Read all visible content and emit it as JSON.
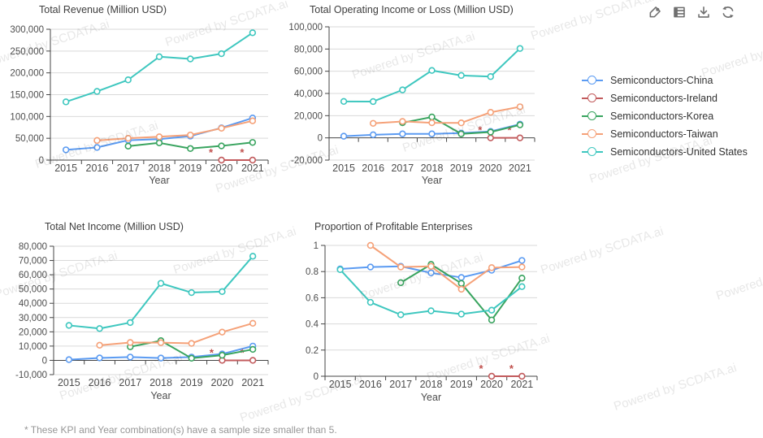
{
  "watermark": "Powered by SCDATA.ai",
  "footnote": "* These KPI and Year combination(s) have a sample size smaller than 5.",
  "toolbar": {
    "icons": [
      "tag",
      "data-view",
      "download",
      "refresh"
    ]
  },
  "legend": [
    {
      "label": "Semiconductors-China",
      "color": "#5B9BF2"
    },
    {
      "label": "Semiconductors-Ireland",
      "color": "#C25B5D"
    },
    {
      "label": "Semiconductors-Korea",
      "color": "#39A45F"
    },
    {
      "label": "Semiconductors-Taiwan",
      "color": "#F5A178"
    },
    {
      "label": "Semiconductors-United States",
      "color": "#3EC7BF"
    }
  ],
  "flag_color": "#C0504D",
  "axis_color": "#444444",
  "grid_color": "#D9D9D9",
  "chart_data": [
    {
      "type": "line",
      "title": "Total Revenue (Million USD)",
      "xlabel": "Year",
      "categories": [
        "2015",
        "2016",
        "2017",
        "2018",
        "2019",
        "2020",
        "2021"
      ],
      "ylim": [
        0,
        300000
      ],
      "ytick_step": 50000,
      "grid": true,
      "series": [
        {
          "name": "Semiconductors-China",
          "color": "#5B9BF2",
          "values": [
            23500,
            29000,
            45500,
            48000,
            55000,
            74000,
            96500
          ]
        },
        {
          "name": "Semiconductors-Ireland",
          "color": "#C25B5D",
          "values": [
            null,
            null,
            null,
            null,
            null,
            0,
            0
          ],
          "flagged_indices": [
            5,
            6
          ]
        },
        {
          "name": "Semiconductors-Korea",
          "color": "#39A45F",
          "values": [
            null,
            null,
            32000,
            39500,
            26500,
            32500,
            40500
          ]
        },
        {
          "name": "Semiconductors-Taiwan",
          "color": "#F5A178",
          "values": [
            null,
            45000,
            50000,
            53500,
            57500,
            73000,
            90000
          ]
        },
        {
          "name": "Semiconductors-United States",
          "color": "#3EC7BF",
          "values": [
            133500,
            157500,
            184000,
            237000,
            232000,
            244000,
            292000
          ]
        }
      ]
    },
    {
      "type": "line",
      "title": "Total Operating Income or Loss (Million USD)",
      "xlabel": "Year",
      "categories": [
        "2015",
        "2016",
        "2017",
        "2018",
        "2019",
        "2020",
        "2021"
      ],
      "ylim": [
        -20000,
        100000
      ],
      "ytick_step": 20000,
      "grid": true,
      "series": [
        {
          "name": "Semiconductors-China",
          "color": "#5B9BF2",
          "values": [
            1500,
            2800,
            3600,
            3600,
            4300,
            5800,
            12300
          ]
        },
        {
          "name": "Semiconductors-Ireland",
          "color": "#C25B5D",
          "values": [
            null,
            null,
            null,
            null,
            null,
            0,
            0
          ],
          "flagged_indices": [
            5,
            6
          ]
        },
        {
          "name": "Semiconductors-Korea",
          "color": "#39A45F",
          "values": [
            null,
            null,
            13600,
            18800,
            3600,
            5200,
            11700
          ]
        },
        {
          "name": "Semiconductors-Taiwan",
          "color": "#F5A178",
          "values": [
            null,
            13100,
            14800,
            13600,
            13500,
            23000,
            28000
          ]
        },
        {
          "name": "Semiconductors-United States",
          "color": "#3EC7BF",
          "values": [
            32800,
            32700,
            43200,
            60700,
            56200,
            55200,
            80500
          ]
        }
      ]
    },
    {
      "type": "line",
      "title": "Total Net Income (Million USD)",
      "xlabel": "Year",
      "categories": [
        "2015",
        "2016",
        "2017",
        "2018",
        "2019",
        "2020",
        "2021"
      ],
      "ylim": [
        -10000,
        80000
      ],
      "ytick_step": 10000,
      "grid": true,
      "series": [
        {
          "name": "Semiconductors-China",
          "color": "#5B9BF2",
          "values": [
            500,
            1700,
            2300,
            1600,
            2300,
            4500,
            10000
          ]
        },
        {
          "name": "Semiconductors-Ireland",
          "color": "#C25B5D",
          "values": [
            null,
            null,
            null,
            null,
            null,
            0,
            0
          ],
          "flagged_indices": [
            5,
            6
          ]
        },
        {
          "name": "Semiconductors-Korea",
          "color": "#39A45F",
          "values": [
            null,
            null,
            9500,
            13800,
            1500,
            3600,
            7700
          ]
        },
        {
          "name": "Semiconductors-Taiwan",
          "color": "#F5A178",
          "values": [
            null,
            10600,
            12500,
            12400,
            11900,
            19800,
            26000
          ]
        },
        {
          "name": "Semiconductors-United States",
          "color": "#3EC7BF",
          "values": [
            24500,
            22300,
            26500,
            54000,
            47500,
            48200,
            73000
          ]
        }
      ]
    },
    {
      "type": "line",
      "title": "Proportion of Profitable Enterprises",
      "xlabel": "Year",
      "categories": [
        "2015",
        "2016",
        "2017",
        "2018",
        "2019",
        "2020",
        "2021"
      ],
      "ylim": [
        0,
        1
      ],
      "ytick_step": 0.2,
      "grid": true,
      "series": [
        {
          "name": "Semiconductors-China",
          "color": "#5B9BF2",
          "values": [
            0.82,
            0.835,
            0.84,
            0.79,
            0.755,
            0.81,
            0.885
          ]
        },
        {
          "name": "Semiconductors-Ireland",
          "color": "#C25B5D",
          "values": [
            null,
            null,
            null,
            null,
            null,
            0,
            0
          ],
          "flagged_indices": [
            5,
            6
          ]
        },
        {
          "name": "Semiconductors-Korea",
          "color": "#39A45F",
          "values": [
            null,
            null,
            0.715,
            0.855,
            0.71,
            0.43,
            0.75
          ]
        },
        {
          "name": "Semiconductors-Taiwan",
          "color": "#F5A178",
          "values": [
            null,
            1,
            0.835,
            0.84,
            0.665,
            0.83,
            0.835
          ]
        },
        {
          "name": "Semiconductors-United States",
          "color": "#3EC7BF",
          "values": [
            0.815,
            0.565,
            0.47,
            0.5,
            0.475,
            0.505,
            0.685
          ]
        }
      ]
    }
  ]
}
